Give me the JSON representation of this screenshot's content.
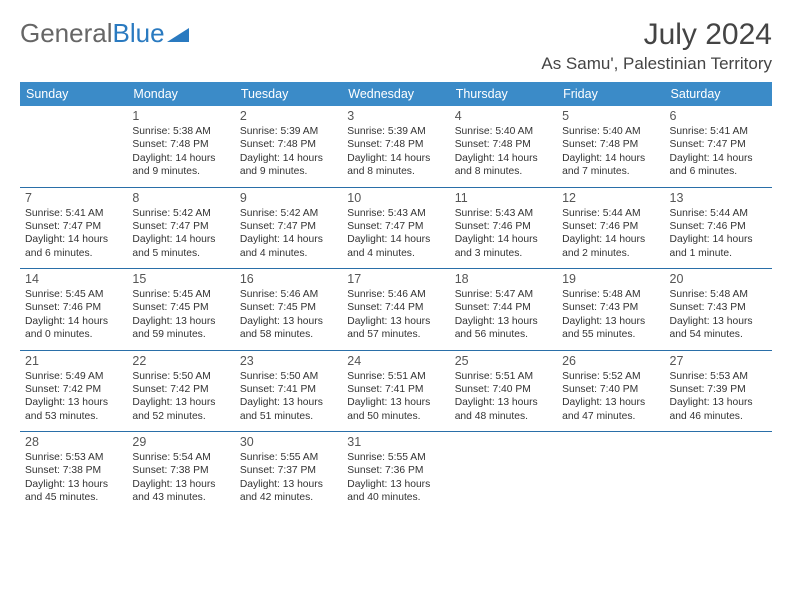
{
  "brand": {
    "part1": "General",
    "part2": "Blue"
  },
  "title": "July 2024",
  "location": "As Samu', Palestinian Territory",
  "colors": {
    "header_bg": "#3b8bc8",
    "header_text": "#ffffff",
    "week_divider": "#2a6fa8",
    "brand_gray": "#666666",
    "brand_blue": "#2a7ac0"
  },
  "day_headers": [
    "Sunday",
    "Monday",
    "Tuesday",
    "Wednesday",
    "Thursday",
    "Friday",
    "Saturday"
  ],
  "first_weekday_index": 1,
  "days": [
    {
      "n": 1,
      "sr": "5:38 AM",
      "ss": "7:48 PM",
      "dl": "14 hours and 9 minutes."
    },
    {
      "n": 2,
      "sr": "5:39 AM",
      "ss": "7:48 PM",
      "dl": "14 hours and 9 minutes."
    },
    {
      "n": 3,
      "sr": "5:39 AM",
      "ss": "7:48 PM",
      "dl": "14 hours and 8 minutes."
    },
    {
      "n": 4,
      "sr": "5:40 AM",
      "ss": "7:48 PM",
      "dl": "14 hours and 8 minutes."
    },
    {
      "n": 5,
      "sr": "5:40 AM",
      "ss": "7:48 PM",
      "dl": "14 hours and 7 minutes."
    },
    {
      "n": 6,
      "sr": "5:41 AM",
      "ss": "7:47 PM",
      "dl": "14 hours and 6 minutes."
    },
    {
      "n": 7,
      "sr": "5:41 AM",
      "ss": "7:47 PM",
      "dl": "14 hours and 6 minutes."
    },
    {
      "n": 8,
      "sr": "5:42 AM",
      "ss": "7:47 PM",
      "dl": "14 hours and 5 minutes."
    },
    {
      "n": 9,
      "sr": "5:42 AM",
      "ss": "7:47 PM",
      "dl": "14 hours and 4 minutes."
    },
    {
      "n": 10,
      "sr": "5:43 AM",
      "ss": "7:47 PM",
      "dl": "14 hours and 4 minutes."
    },
    {
      "n": 11,
      "sr": "5:43 AM",
      "ss": "7:46 PM",
      "dl": "14 hours and 3 minutes."
    },
    {
      "n": 12,
      "sr": "5:44 AM",
      "ss": "7:46 PM",
      "dl": "14 hours and 2 minutes."
    },
    {
      "n": 13,
      "sr": "5:44 AM",
      "ss": "7:46 PM",
      "dl": "14 hours and 1 minute."
    },
    {
      "n": 14,
      "sr": "5:45 AM",
      "ss": "7:46 PM",
      "dl": "14 hours and 0 minutes."
    },
    {
      "n": 15,
      "sr": "5:45 AM",
      "ss": "7:45 PM",
      "dl": "13 hours and 59 minutes."
    },
    {
      "n": 16,
      "sr": "5:46 AM",
      "ss": "7:45 PM",
      "dl": "13 hours and 58 minutes."
    },
    {
      "n": 17,
      "sr": "5:46 AM",
      "ss": "7:44 PM",
      "dl": "13 hours and 57 minutes."
    },
    {
      "n": 18,
      "sr": "5:47 AM",
      "ss": "7:44 PM",
      "dl": "13 hours and 56 minutes."
    },
    {
      "n": 19,
      "sr": "5:48 AM",
      "ss": "7:43 PM",
      "dl": "13 hours and 55 minutes."
    },
    {
      "n": 20,
      "sr": "5:48 AM",
      "ss": "7:43 PM",
      "dl": "13 hours and 54 minutes."
    },
    {
      "n": 21,
      "sr": "5:49 AM",
      "ss": "7:42 PM",
      "dl": "13 hours and 53 minutes."
    },
    {
      "n": 22,
      "sr": "5:50 AM",
      "ss": "7:42 PM",
      "dl": "13 hours and 52 minutes."
    },
    {
      "n": 23,
      "sr": "5:50 AM",
      "ss": "7:41 PM",
      "dl": "13 hours and 51 minutes."
    },
    {
      "n": 24,
      "sr": "5:51 AM",
      "ss": "7:41 PM",
      "dl": "13 hours and 50 minutes."
    },
    {
      "n": 25,
      "sr": "5:51 AM",
      "ss": "7:40 PM",
      "dl": "13 hours and 48 minutes."
    },
    {
      "n": 26,
      "sr": "5:52 AM",
      "ss": "7:40 PM",
      "dl": "13 hours and 47 minutes."
    },
    {
      "n": 27,
      "sr": "5:53 AM",
      "ss": "7:39 PM",
      "dl": "13 hours and 46 minutes."
    },
    {
      "n": 28,
      "sr": "5:53 AM",
      "ss": "7:38 PM",
      "dl": "13 hours and 45 minutes."
    },
    {
      "n": 29,
      "sr": "5:54 AM",
      "ss": "7:38 PM",
      "dl": "13 hours and 43 minutes."
    },
    {
      "n": 30,
      "sr": "5:55 AM",
      "ss": "7:37 PM",
      "dl": "13 hours and 42 minutes."
    },
    {
      "n": 31,
      "sr": "5:55 AM",
      "ss": "7:36 PM",
      "dl": "13 hours and 40 minutes."
    }
  ],
  "labels": {
    "sunrise": "Sunrise:",
    "sunset": "Sunset:",
    "daylight": "Daylight:"
  }
}
